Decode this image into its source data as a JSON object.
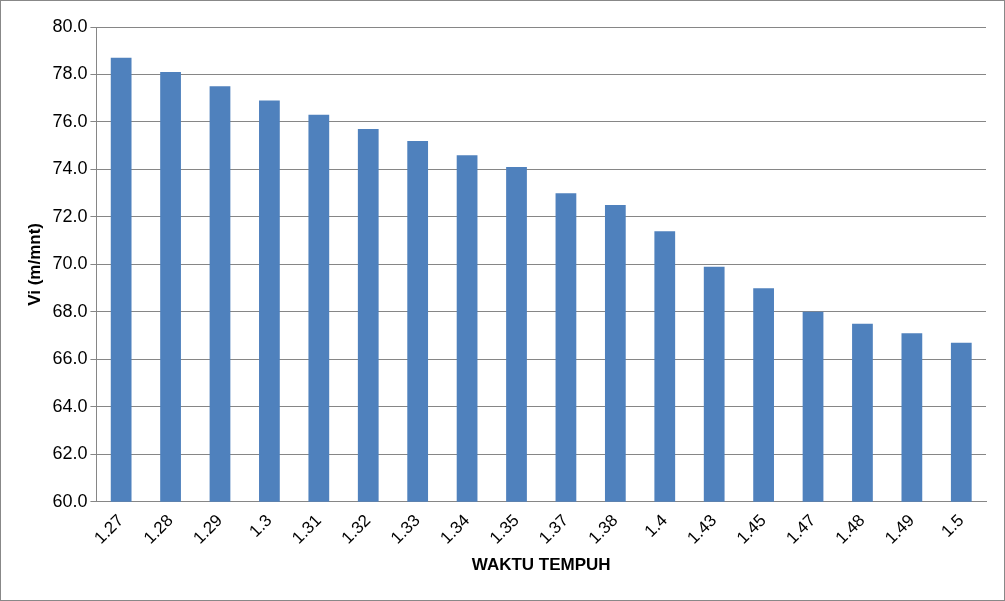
{
  "chart_data": {
    "type": "bar",
    "xlabel": "WAKTU TEMPUH",
    "ylabel": "Vi (m/mnt)",
    "categories": [
      "1.27",
      "1.28",
      "1.29",
      "1.3",
      "1.31",
      "1.32",
      "1.33",
      "1.34",
      "1.35",
      "1.37",
      "1.38",
      "1.4",
      "1.43",
      "1.45",
      "1.47",
      "1.48",
      "1.49",
      "1.5"
    ],
    "values": [
      78.7,
      78.1,
      77.5,
      76.9,
      76.3,
      75.7,
      75.2,
      74.6,
      74.1,
      73.0,
      72.5,
      71.4,
      69.9,
      69.0,
      68.0,
      67.5,
      67.1,
      66.7
    ],
    "color": "#4f81bd",
    "ylim": [
      60,
      80
    ],
    "yticks": [
      {
        "value": 60,
        "label": "60.0"
      },
      {
        "value": 62,
        "label": "62.0"
      },
      {
        "value": 64,
        "label": "64.0"
      },
      {
        "value": 66,
        "label": "66.0"
      },
      {
        "value": 68,
        "label": "68.0"
      },
      {
        "value": 70,
        "label": "70.0"
      },
      {
        "value": 72,
        "label": "72.0"
      },
      {
        "value": 74,
        "label": "74.0"
      },
      {
        "value": 76,
        "label": "76.0"
      },
      {
        "value": 78,
        "label": "78.0"
      },
      {
        "value": 80,
        "label": "80.0"
      }
    ],
    "grid": "y",
    "legend": false
  }
}
